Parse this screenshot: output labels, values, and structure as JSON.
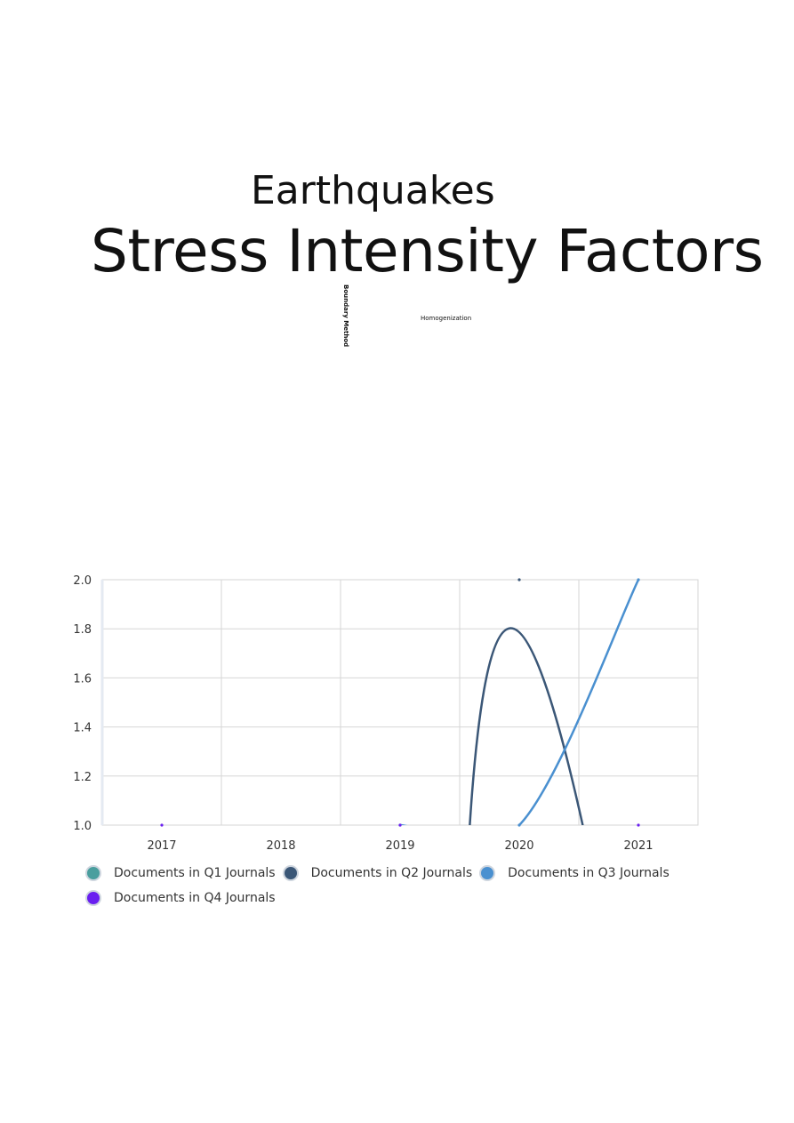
{
  "word_cloud": {
    "words": [
      {
        "text": "Earthquakes"
      },
      {
        "text": "Stress Intensity Factors"
      },
      {
        "text": "Boundary Method"
      },
      {
        "text": "Homogenization"
      }
    ]
  },
  "chart_data": {
    "type": "line",
    "x": [
      "2017",
      "2018",
      "2019",
      "2020",
      "2021"
    ],
    "ylim": [
      1.0,
      2.0
    ],
    "yticks": [
      "1.0",
      "1.2",
      "1.4",
      "1.6",
      "1.8",
      "2.0"
    ],
    "grid": true,
    "legend_position": "bottom",
    "series": [
      {
        "name": "Documents in Q1 Journals",
        "color": "#4a9e9e",
        "values": [
          null,
          null,
          null,
          null,
          null
        ]
      },
      {
        "name": "Documents in Q2 Journals",
        "color": "#3b5777",
        "values": [
          null,
          null,
          null,
          2,
          null
        ]
      },
      {
        "name": "Documents in Q3 Journals",
        "color": "#4a90d0",
        "values": [
          null,
          null,
          1,
          1,
          2
        ]
      },
      {
        "name": "Documents in Q4 Journals",
        "color": "#6a1ff0",
        "values": [
          1,
          null,
          1,
          null,
          1
        ]
      }
    ]
  }
}
